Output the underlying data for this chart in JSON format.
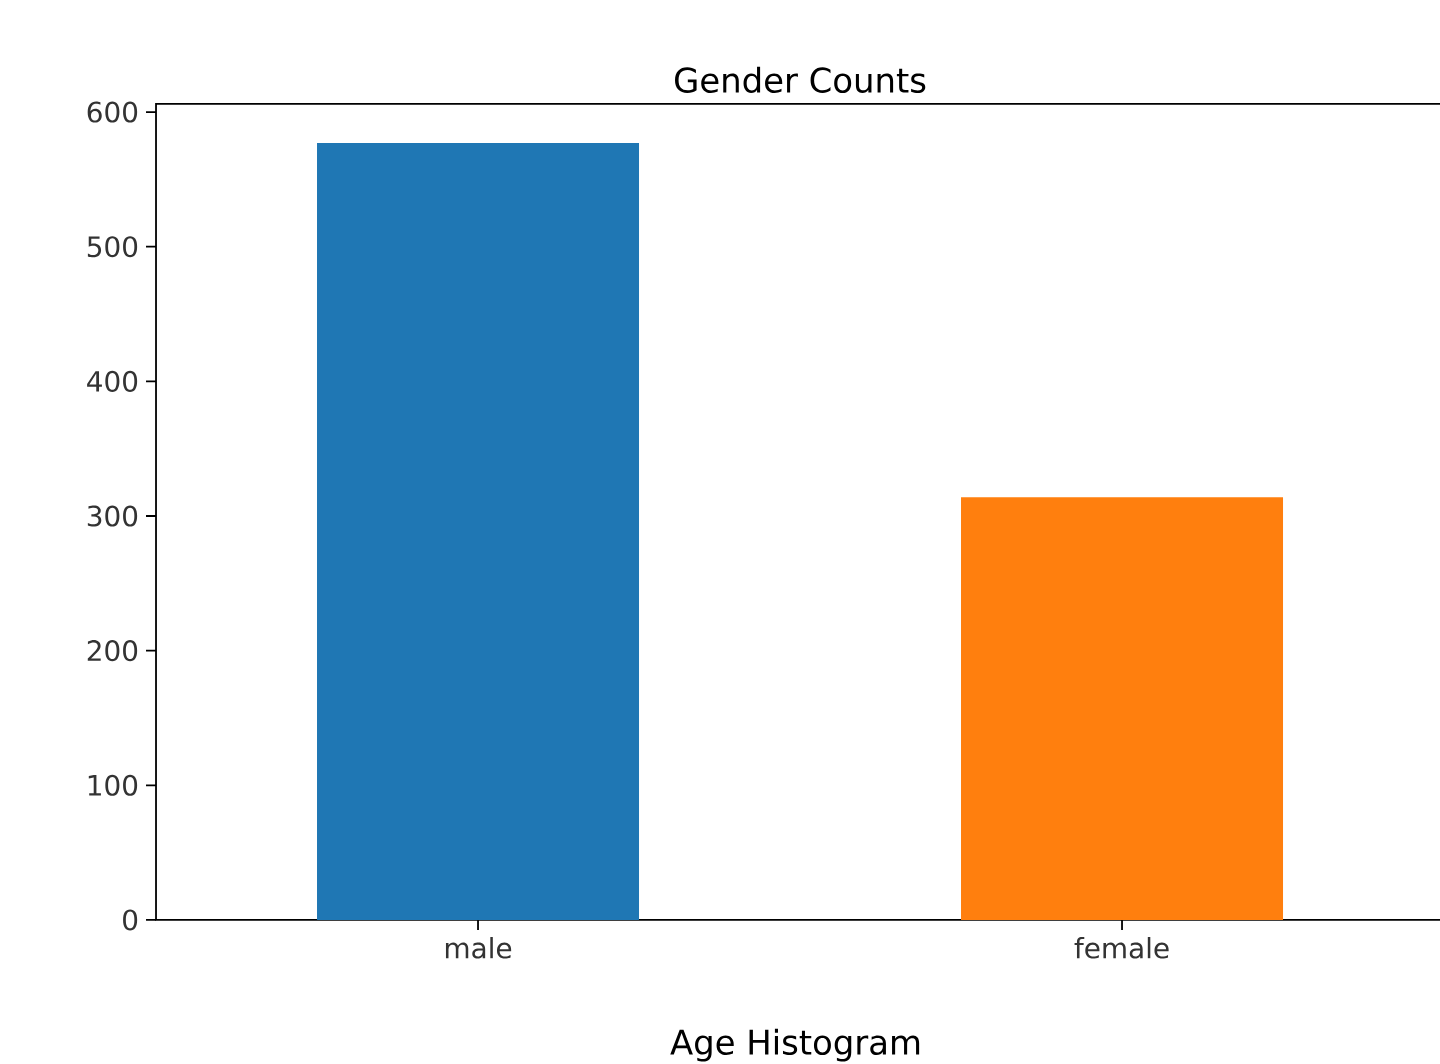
{
  "chart_data": {
    "type": "bar",
    "title": "Gender Counts",
    "categories": [
      "male",
      "female"
    ],
    "values": [
      577,
      314
    ],
    "colors": [
      "#1f77b4",
      "#ff7f0e"
    ],
    "ylim": [
      0,
      606
    ],
    "yticks": [
      0,
      100,
      200,
      300,
      400,
      500,
      600
    ],
    "annotations": [
      "Age Histogram"
    ]
  }
}
